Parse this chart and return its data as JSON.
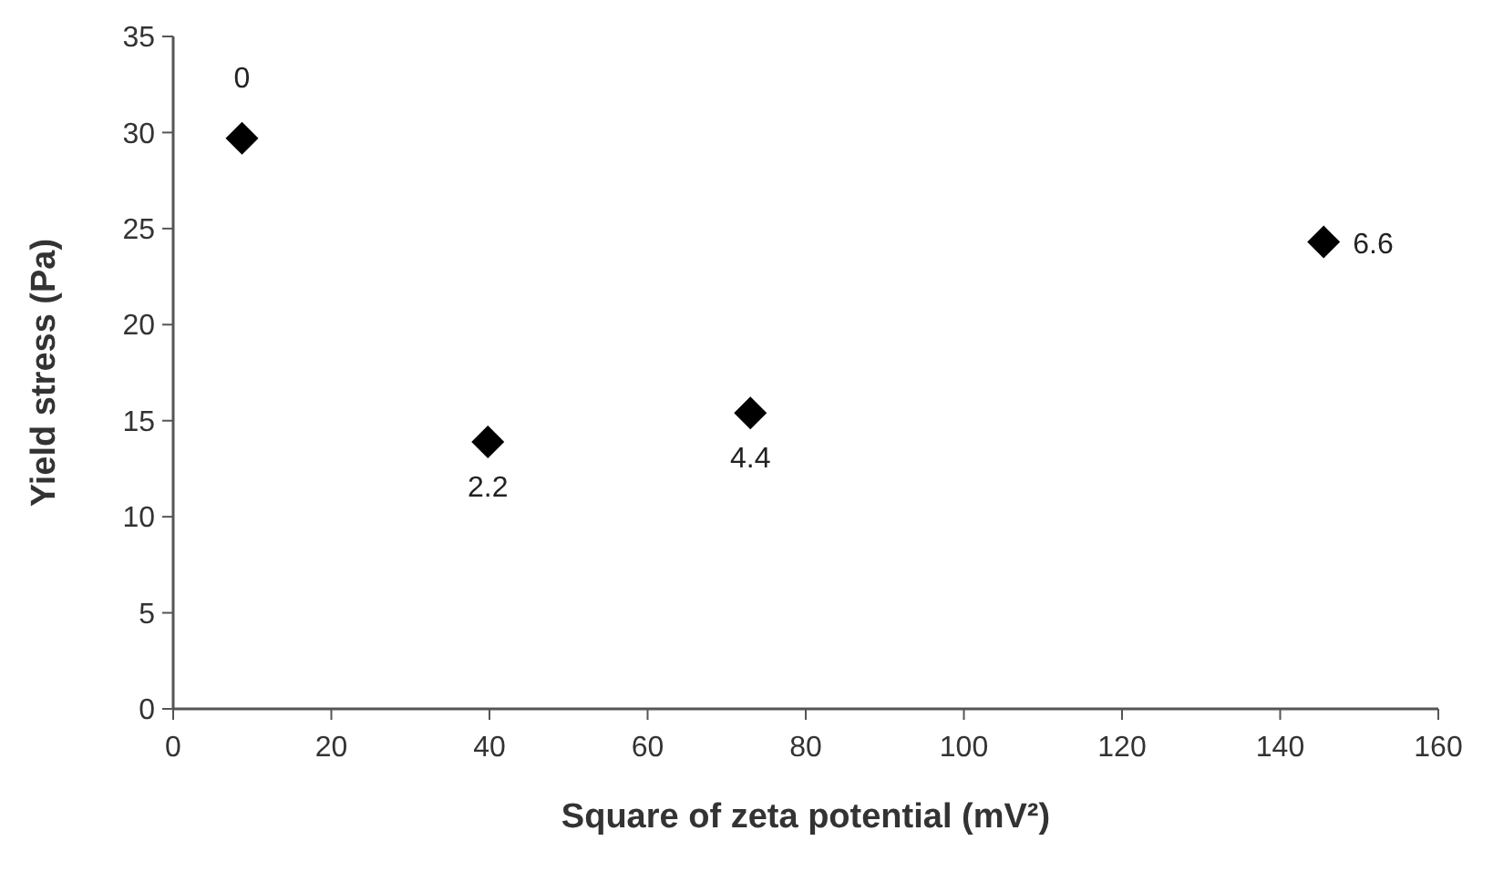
{
  "chart_data": {
    "type": "scatter",
    "xlabel": "Square of zeta potential (mV²)",
    "ylabel": "Yield stress  (Pa)",
    "x": [
      8.7,
      39.8,
      73,
      145.5
    ],
    "series": [
      {
        "color": "#000000",
        "values": [
          29.7,
          13.9,
          15.4,
          24.3
        ]
      }
    ],
    "marker": "diamond",
    "xlim": [
      0,
      160
    ],
    "xticks": [
      0,
      20,
      40,
      60,
      80,
      100,
      120,
      140,
      160
    ],
    "ylim": [
      0,
      35
    ],
    "yticks": [
      0,
      5,
      10,
      15,
      20,
      25,
      30,
      35
    ],
    "grid": false,
    "annotations": [
      {
        "text": "0",
        "x": 8.7,
        "y": 29.7
      },
      {
        "text": "2.2",
        "x": 39.8,
        "y": 13.9
      },
      {
        "text": "4.4",
        "x": 73,
        "y": 15.4
      },
      {
        "text": "6.6",
        "x": 145.5,
        "y": 24.3
      }
    ]
  }
}
